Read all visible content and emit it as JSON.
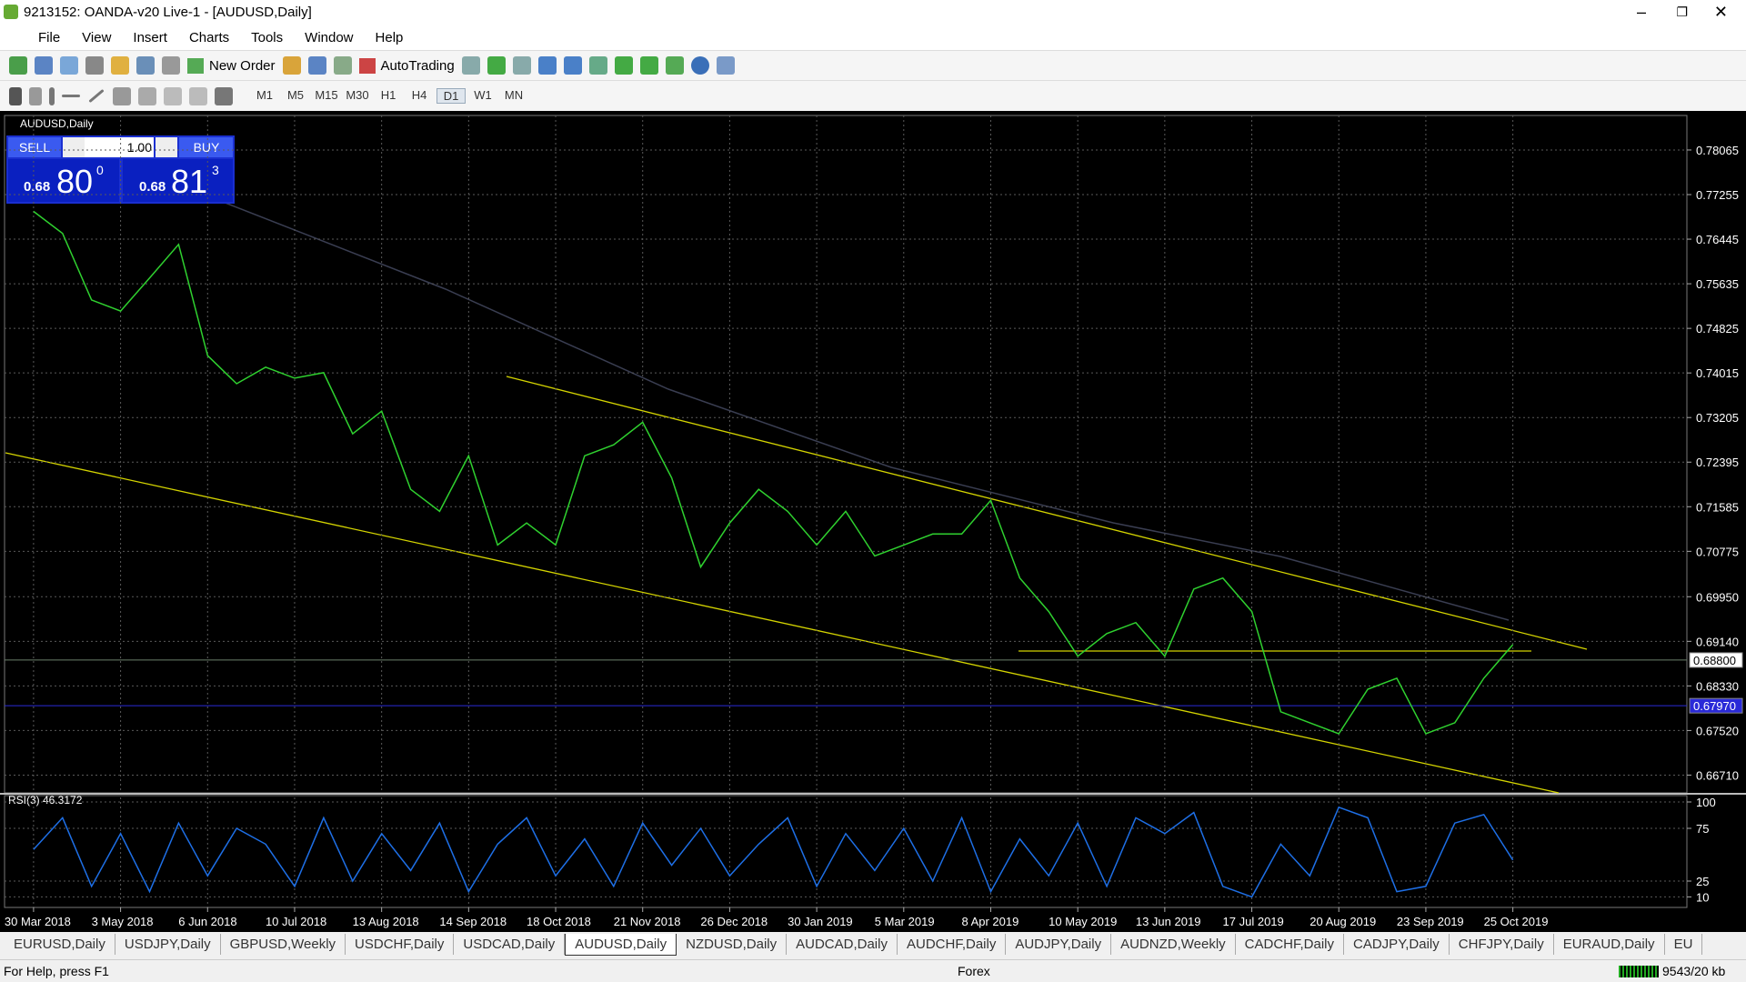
{
  "window": {
    "title": "9213152: OANDA-v20 Live-1 - [AUDUSD,Daily]"
  },
  "menu": [
    "File",
    "View",
    "Insert",
    "Charts",
    "Tools",
    "Window",
    "Help"
  ],
  "toolbar": {
    "new_order": "New Order",
    "autotrading": "AutoTrading",
    "timeframes": [
      "M1",
      "M5",
      "M15",
      "M30",
      "H1",
      "H4",
      "D1",
      "W1",
      "MN"
    ]
  },
  "trade_panel": {
    "sell": "SELL",
    "lots": "1.00",
    "buy": "BUY",
    "bid_prefix": "0.68",
    "bid_big": "80",
    "bid_sup": "0",
    "ask_prefix": "0.68",
    "ask_big": "81",
    "ask_sup": "3"
  },
  "chart_data": [
    {
      "type": "line",
      "title": "AUDUSD,Daily",
      "color": "#2fd12f",
      "x": [
        0,
        8,
        16,
        24,
        32,
        40,
        48,
        56,
        64,
        72,
        80,
        88,
        96,
        104,
        112,
        120,
        128,
        136,
        144,
        152,
        160,
        168,
        176,
        184,
        192,
        200,
        208,
        216,
        224,
        232,
        240,
        248,
        256,
        264,
        272,
        280,
        288,
        296,
        304,
        312,
        320,
        328,
        336,
        344,
        352,
        360,
        368,
        376,
        384,
        392,
        400,
        408
      ],
      "values": [
        0.7695,
        0.7655,
        0.7534,
        0.7514,
        0.7574,
        0.7635,
        0.7433,
        0.7382,
        0.7412,
        0.7392,
        0.7402,
        0.7291,
        0.7332,
        0.719,
        0.715,
        0.7251,
        0.7089,
        0.7129,
        0.7089,
        0.7251,
        0.7271,
        0.7312,
        0.7211,
        0.7049,
        0.7129,
        0.719,
        0.715,
        0.7089,
        0.715,
        0.7069,
        0.7089,
        0.7109,
        0.7109,
        0.717,
        0.7029,
        0.6968,
        0.6887,
        0.6928,
        0.6948,
        0.6887,
        0.7009,
        0.7029,
        0.6968,
        0.6786,
        0.6766,
        0.6746,
        0.6827,
        0.6847,
        0.6746,
        0.6766,
        0.6847,
        0.6908
      ],
      "xlim": [
        -8,
        456
      ],
      "xticks": [
        {
          "value": 0,
          "label": "30 Mar 2018"
        },
        {
          "value": 24,
          "label": "3 May 2018"
        },
        {
          "value": 48,
          "label": "6 Jun 2018"
        },
        {
          "value": 72,
          "label": "10 Jul 2018"
        },
        {
          "value": 96,
          "label": "13 Aug 2018"
        },
        {
          "value": 120,
          "label": "14 Sep 2018"
        },
        {
          "value": 144,
          "label": "18 Oct 2018"
        },
        {
          "value": 168,
          "label": "21 Nov 2018"
        },
        {
          "value": 192,
          "label": "26 Dec 2018"
        },
        {
          "value": 216,
          "label": "30 Jan 2019"
        },
        {
          "value": 240,
          "label": "5 Mar 2019"
        },
        {
          "value": 264,
          "label": "8 Apr 2019"
        },
        {
          "value": 288,
          "label": "10 May 2019"
        },
        {
          "value": 312,
          "label": "13 Jun 2019"
        },
        {
          "value": 336,
          "label": "17 Jul 2019"
        },
        {
          "value": 360,
          "label": "20 Aug 2019"
        },
        {
          "value": 384,
          "label": "23 Sep 2019"
        },
        {
          "value": 408,
          "label": "25 Oct 2019"
        }
      ],
      "ylim": [
        0.66387,
        0.78692
      ],
      "yticks": [
        0.78065,
        0.77255,
        0.76445,
        0.75635,
        0.74825,
        0.74015,
        0.73205,
        0.72395,
        0.71585,
        0.70775,
        {
          "value": 0.6995,
          "label": "0.69950"
        },
        {
          "value": 0.6914,
          "label": "0.69140"
        },
        {
          "value": 0.6833,
          "label": "0.68330"
        },
        {
          "value": 0.6752,
          "label": "0.67520"
        },
        {
          "value": 0.6671,
          "label": "0.66710"
        }
      ],
      "price_lines": [
        {
          "value": 0.688,
          "label": "0.68800",
          "color": "#6b7f6b"
        },
        {
          "value": 0.6797,
          "label": "0.67970",
          "color": "#2a2ad8"
        }
      ],
      "grid": true
    },
    {
      "type": "line",
      "title": "RSI(3) 46.3172",
      "color": "#1e6fe6",
      "x": [
        0,
        8,
        16,
        24,
        32,
        40,
        48,
        56,
        64,
        72,
        80,
        88,
        96,
        104,
        112,
        120,
        128,
        136,
        144,
        152,
        160,
        168,
        176,
        184,
        192,
        200,
        208,
        216,
        224,
        232,
        240,
        248,
        256,
        264,
        272,
        280,
        288,
        296,
        304,
        312,
        320,
        328,
        336,
        344,
        352,
        360,
        368,
        376,
        384,
        392,
        400,
        408
      ],
      "values": [
        55,
        85,
        20,
        70,
        15,
        80,
        30,
        75,
        60,
        20,
        85,
        25,
        70,
        35,
        80,
        15,
        60,
        85,
        30,
        65,
        20,
        80,
        40,
        75,
        30,
        60,
        85,
        20,
        70,
        35,
        75,
        25,
        85,
        15,
        65,
        30,
        80,
        20,
        85,
        70,
        90,
        20,
        10,
        60,
        30,
        95,
        85,
        15,
        20,
        80,
        88,
        45
      ],
      "xlim": [
        -8,
        456
      ],
      "ylim": [
        0,
        100
      ],
      "yticks": [
        100,
        75,
        25,
        10
      ]
    }
  ],
  "tabs": [
    "EURUSD,Daily",
    "USDJPY,Daily",
    "GBPUSD,Weekly",
    "USDCHF,Daily",
    "USDCAD,Daily",
    "AUDUSD,Daily",
    "NZDUSD,Daily",
    "AUDCAD,Daily",
    "AUDCHF,Daily",
    "AUDJPY,Daily",
    "AUDNZD,Weekly",
    "CADCHF,Daily",
    "CADJPY,Daily",
    "CHFJPY,Daily",
    "EURAUD,Daily",
    "EU"
  ],
  "status": {
    "help": "For Help, press F1",
    "profile": "Forex",
    "traffic": "9543/20 kb"
  }
}
